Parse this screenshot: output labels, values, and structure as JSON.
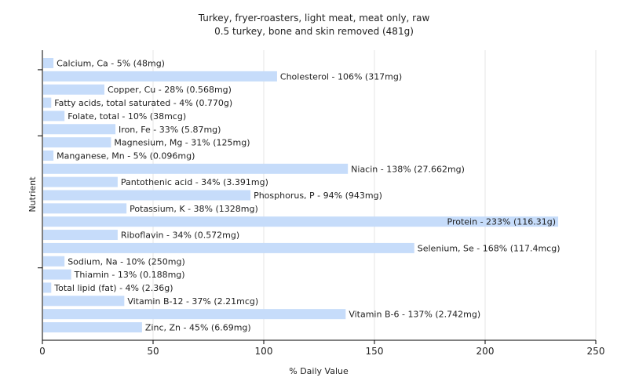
{
  "chart_data": {
    "type": "bar",
    "orientation": "horizontal",
    "title": "Turkey, fryer-roasters, light meat, meat only, raw",
    "subtitle": "0.5 turkey, bone and skin removed (481g)",
    "xlabel": "% Daily Value",
    "ylabel": "Nutrient",
    "xlim": [
      0,
      250
    ],
    "xticks": [
      0,
      50,
      100,
      150,
      200,
      250
    ],
    "grid": true,
    "bar_color": "#c6dcfa",
    "categories": [
      "Calcium, Ca",
      "Cholesterol",
      "Copper, Cu",
      "Fatty acids, total saturated",
      "Folate, total",
      "Iron, Fe",
      "Magnesium, Mg",
      "Manganese, Mn",
      "Niacin",
      "Pantothenic acid",
      "Phosphorus, P",
      "Potassium, K",
      "Protein",
      "Riboflavin",
      "Selenium, Se",
      "Sodium, Na",
      "Thiamin",
      "Total lipid (fat)",
      "Vitamin B-12",
      "Vitamin B-6",
      "Zinc, Zn"
    ],
    "values": [
      5,
      106,
      28,
      4,
      10,
      33,
      31,
      5,
      138,
      34,
      94,
      38,
      233,
      34,
      168,
      10,
      13,
      4,
      37,
      137,
      45
    ],
    "labels": [
      "Calcium, Ca - 5% (48mg)",
      "Cholesterol - 106% (317mg)",
      "Copper, Cu - 28% (0.568mg)",
      "Fatty acids, total saturated - 4% (0.770g)",
      "Folate, total - 10% (38mcg)",
      "Iron, Fe - 33% (5.87mg)",
      "Magnesium, Mg - 31% (125mg)",
      "Manganese, Mn - 5% (0.096mg)",
      "Niacin - 138% (27.662mg)",
      "Pantothenic acid - 34% (3.391mg)",
      "Phosphorus, P - 94% (943mg)",
      "Potassium, K - 38% (1328mg)",
      "Protein - 233% (116.31g)",
      "Riboflavin - 34% (0.572mg)",
      "Selenium, Se - 168% (117.4mcg)",
      "Sodium, Na - 10% (250mg)",
      "Thiamin - 13% (0.188mg)",
      "Total lipid (fat) - 4% (2.36g)",
      "Vitamin B-12 - 37% (2.21mcg)",
      "Vitamin B-6 - 137% (2.742mg)",
      "Zinc, Zn - 45% (6.69mg)"
    ]
  }
}
